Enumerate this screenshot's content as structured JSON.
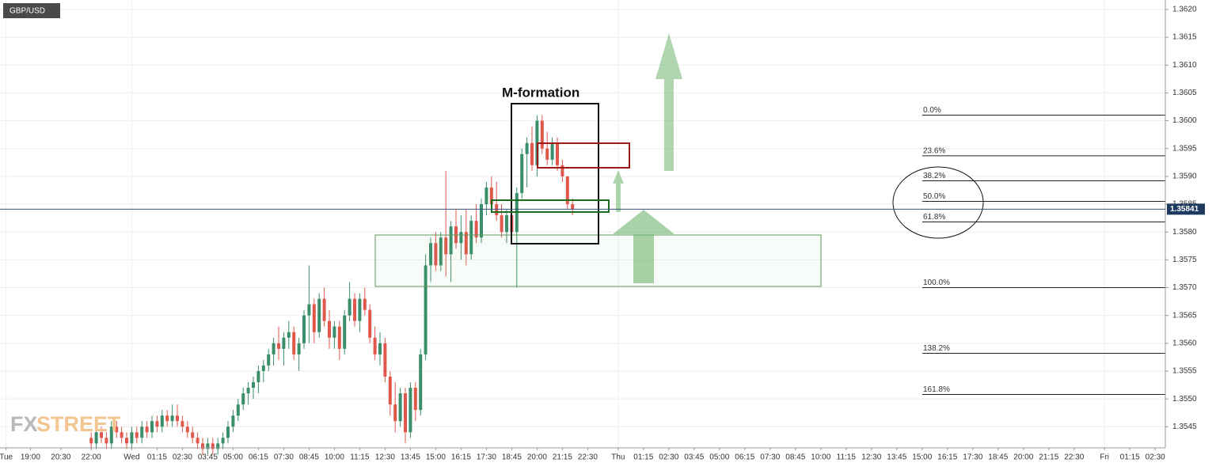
{
  "chart_data": {
    "type": "candlestick",
    "symbol": "GBP/USD",
    "up_color": "#3a8f6a",
    "down_color": "#e0574c",
    "xlim": [
      17.5,
      75
    ],
    "ylim": [
      1.35412,
      1.36217
    ],
    "xticks": [
      {
        "value": 17.8,
        "label": "Tue"
      },
      {
        "value": 19,
        "label": "19:00"
      },
      {
        "value": 20.5,
        "label": "20:30"
      },
      {
        "value": 22,
        "label": "22:00"
      },
      {
        "value": 24,
        "label": "Wed"
      },
      {
        "value": 25.25,
        "label": "01:15"
      },
      {
        "value": 26.5,
        "label": "02:30"
      },
      {
        "value": 27.75,
        "label": "03:45"
      },
      {
        "value": 29,
        "label": "05:00"
      },
      {
        "value": 30.25,
        "label": "06:15"
      },
      {
        "value": 31.5,
        "label": "07:30"
      },
      {
        "value": 32.75,
        "label": "08:45"
      },
      {
        "value": 34,
        "label": "10:00"
      },
      {
        "value": 35.25,
        "label": "11:15"
      },
      {
        "value": 36.5,
        "label": "12:30"
      },
      {
        "value": 37.75,
        "label": "13:45"
      },
      {
        "value": 39,
        "label": "15:00"
      },
      {
        "value": 40.25,
        "label": "16:15"
      },
      {
        "value": 41.5,
        "label": "17:30"
      },
      {
        "value": 42.75,
        "label": "18:45"
      },
      {
        "value": 44,
        "label": "20:00"
      },
      {
        "value": 45.25,
        "label": "21:15"
      },
      {
        "value": 46.5,
        "label": "22:30"
      },
      {
        "value": 48,
        "label": "Thu"
      },
      {
        "value": 49.25,
        "label": "01:15"
      },
      {
        "value": 50.5,
        "label": "02:30"
      },
      {
        "value": 51.75,
        "label": "03:45"
      },
      {
        "value": 53,
        "label": "05:00"
      },
      {
        "value": 54.25,
        "label": "06:15"
      },
      {
        "value": 55.5,
        "label": "07:30"
      },
      {
        "value": 56.75,
        "label": "08:45"
      },
      {
        "value": 58,
        "label": "10:00"
      },
      {
        "value": 59.25,
        "label": "11:15"
      },
      {
        "value": 60.5,
        "label": "12:30"
      },
      {
        "value": 61.75,
        "label": "13:45"
      },
      {
        "value": 63,
        "label": "15:00"
      },
      {
        "value": 64.25,
        "label": "16:15"
      },
      {
        "value": 65.5,
        "label": "17:30"
      },
      {
        "value": 66.75,
        "label": "18:45"
      },
      {
        "value": 68,
        "label": "20:00"
      },
      {
        "value": 69.25,
        "label": "21:15"
      },
      {
        "value": 70.5,
        "label": "22:30"
      },
      {
        "value": 72,
        "label": "Fri"
      },
      {
        "value": 73.25,
        "label": "01:15"
      },
      {
        "value": 74.5,
        "label": "02:30"
      }
    ],
    "yticks": [
      1.3545,
      {
        "value": 1.355,
        "label": "1.3550"
      },
      1.3555,
      {
        "value": 1.356,
        "label": "1.3560"
      },
      1.3565,
      {
        "value": 1.357,
        "label": "1.3570"
      },
      1.3575,
      {
        "value": 1.358,
        "label": "1.3580"
      },
      1.3585,
      {
        "value": 1.359,
        "label": "1.3590"
      },
      1.3595,
      {
        "value": 1.36,
        "label": "1.3600"
      },
      1.3605,
      {
        "value": 1.361,
        "label": "1.3610"
      },
      1.3615,
      {
        "value": 1.362,
        "label": "1.3620"
      }
    ],
    "grid": true,
    "current_price": 1.35841,
    "annotation": "M-formation",
    "watermark": {
      "prefix": "FX",
      "suffix": "STREET"
    },
    "fibonacci": [
      {
        "label": "0.0%",
        "price": 1.3601
      },
      {
        "label": "23.6%",
        "price": 1.35937
      },
      {
        "label": "38.2%",
        "price": 1.35892
      },
      {
        "label": "50.0%",
        "price": 1.35855
      },
      {
        "label": "61.8%",
        "price": 1.35818
      },
      {
        "label": "100.0%",
        "price": 1.357
      },
      {
        "label": "138.2%",
        "price": 1.35582
      },
      {
        "label": "161.8%",
        "price": 1.35508
      }
    ],
    "x": [
      22,
      22.25,
      22.5,
      22.75,
      23,
      23.25,
      23.5,
      23.75,
      24,
      24.25,
      24.5,
      24.75,
      25,
      25.25,
      25.5,
      25.75,
      26,
      26.25,
      26.5,
      26.75,
      27,
      27.25,
      27.5,
      27.75,
      28,
      28.25,
      28.5,
      28.75,
      29,
      29.25,
      29.5,
      29.75,
      30,
      30.25,
      30.5,
      30.75,
      31,
      31.25,
      31.5,
      31.75,
      32,
      32.25,
      32.5,
      32.75,
      33,
      33.25,
      33.5,
      33.75,
      34,
      34.25,
      34.5,
      34.75,
      35,
      35.25,
      35.5,
      35.75,
      36,
      36.25,
      36.5,
      36.75,
      37,
      37.25,
      37.5,
      37.75,
      38,
      38.25,
      38.5,
      38.75,
      39,
      39.25,
      39.5,
      39.75,
      40,
      40.25,
      40.5,
      40.75,
      41,
      41.25,
      41.5,
      41.75,
      42,
      42.25,
      42.5,
      42.75,
      43,
      43.25,
      43.5,
      43.75,
      44,
      44.25,
      44.5,
      44.75,
      45,
      45.25,
      45.5,
      45.75
    ],
    "open": [
      1.3543,
      1.3542,
      1.3544,
      1.3543,
      1.3542,
      1.3545,
      1.3544,
      1.3543,
      1.3542,
      1.3544,
      1.3543,
      1.3545,
      1.3544,
      1.3546,
      1.3545,
      1.3547,
      1.3546,
      1.3547,
      1.3546,
      1.3545,
      1.3544,
      1.3543,
      1.3542,
      1.3541,
      1.3542,
      1.3541,
      1.3542,
      1.3543,
      1.3545,
      1.3547,
      1.3549,
      1.3551,
      1.3552,
      1.3553,
      1.3555,
      1.3556,
      1.3558,
      1.356,
      1.3559,
      1.3561,
      1.3562,
      1.3558,
      1.356,
      1.3565,
      1.3567,
      1.3562,
      1.3568,
      1.3564,
      1.3561,
      1.3563,
      1.3559,
      1.3565,
      1.3568,
      1.3564,
      1.3568,
      1.3566,
      1.3561,
      1.3558,
      1.356,
      1.3554,
      1.3549,
      1.3546,
      1.3551,
      1.3544,
      1.3552,
      1.3548,
      1.3558,
      1.3574,
      1.3578,
      1.3574,
      1.3579,
      1.3576,
      1.3581,
      1.3578,
      1.358,
      1.3576,
      1.3582,
      1.3579,
      1.3585,
      1.3588,
      1.3585,
      1.3583,
      1.358,
      1.3583,
      1.358,
      1.3587,
      1.3594,
      1.3596,
      1.3592,
      1.36,
      1.3595,
      1.3593,
      1.3596,
      1.3592,
      1.359,
      1.3585
    ],
    "high": [
      1.3544,
      1.3545,
      1.3545,
      1.3544,
      1.3546,
      1.3546,
      1.3545,
      1.3544,
      1.3545,
      1.3545,
      1.3546,
      1.3546,
      1.3547,
      1.3547,
      1.3548,
      1.3548,
      1.3549,
      1.3549,
      1.3547,
      1.3546,
      1.3545,
      1.3544,
      1.3543,
      1.3543,
      1.3543,
      1.3543,
      1.3544,
      1.3546,
      1.3548,
      1.355,
      1.3552,
      1.3553,
      1.3554,
      1.3556,
      1.3557,
      1.3559,
      1.3561,
      1.3563,
      1.3562,
      1.3564,
      1.3563,
      1.3561,
      1.3566,
      1.3574,
      1.3568,
      1.3569,
      1.357,
      1.3566,
      1.3564,
      1.3564,
      1.3566,
      1.3571,
      1.3569,
      1.3569,
      1.357,
      1.3567,
      1.3563,
      1.3562,
      1.3561,
      1.3555,
      1.3553,
      1.3552,
      1.3552,
      1.3553,
      1.3553,
      1.3559,
      1.3576,
      1.3579,
      1.358,
      1.358,
      1.3591,
      1.3582,
      1.3584,
      1.3583,
      1.3584,
      1.3583,
      1.3585,
      1.3586,
      1.3589,
      1.359,
      1.3589,
      1.3585,
      1.3584,
      1.3584,
      1.3588,
      1.3595,
      1.3597,
      1.3599,
      1.3601,
      1.3601,
      1.3598,
      1.3597,
      1.3597,
      1.3593,
      1.359,
      1.3586
    ],
    "low": [
      1.3541,
      1.3541,
      1.3542,
      1.3541,
      1.3541,
      1.3543,
      1.3542,
      1.3541,
      1.3541,
      1.3542,
      1.3542,
      1.3543,
      1.3543,
      1.3544,
      1.3544,
      1.3545,
      1.3545,
      1.3545,
      1.3544,
      1.3543,
      1.3542,
      1.3541,
      1.354,
      1.354,
      1.354,
      1.354,
      1.3541,
      1.3542,
      1.3544,
      1.3546,
      1.3548,
      1.3549,
      1.355,
      1.3551,
      1.3553,
      1.3555,
      1.3556,
      1.3557,
      1.3556,
      1.3559,
      1.3557,
      1.3555,
      1.3559,
      1.356,
      1.356,
      1.3561,
      1.3563,
      1.3559,
      1.3559,
      1.3557,
      1.3558,
      1.3564,
      1.3563,
      1.3562,
      1.3565,
      1.356,
      1.3557,
      1.3556,
      1.3553,
      1.3547,
      1.3544,
      1.3545,
      1.3542,
      1.3543,
      1.3546,
      1.3547,
      1.3557,
      1.3571,
      1.3573,
      1.3573,
      1.3572,
      1.3571,
      1.3577,
      1.3575,
      1.3574,
      1.3575,
      1.3578,
      1.3578,
      1.3583,
      1.3584,
      1.3582,
      1.3579,
      1.3578,
      1.3578,
      1.357,
      1.3586,
      1.3588,
      1.3591,
      1.359,
      1.3594,
      1.3592,
      1.3592,
      1.3591,
      1.3589,
      1.3584,
      1.3583
    ],
    "close": [
      1.3542,
      1.3544,
      1.3543,
      1.3542,
      1.3545,
      1.3544,
      1.3543,
      1.3542,
      1.3544,
      1.3543,
      1.3545,
      1.3544,
      1.3546,
      1.3545,
      1.3547,
      1.3546,
      1.3547,
      1.3546,
      1.3545,
      1.3544,
      1.3543,
      1.3542,
      1.3541,
      1.3542,
      1.3541,
      1.3542,
      1.3543,
      1.3545,
      1.3547,
      1.3549,
      1.3551,
      1.3552,
      1.3553,
      1.3555,
      1.3556,
      1.3558,
      1.356,
      1.3559,
      1.3561,
      1.3562,
      1.3558,
      1.356,
      1.3565,
      1.3567,
      1.3562,
      1.3568,
      1.3564,
      1.3561,
      1.3563,
      1.3559,
      1.3565,
      1.3568,
      1.3564,
      1.3568,
      1.3566,
      1.3561,
      1.3558,
      1.356,
      1.3554,
      1.3549,
      1.3546,
      1.3551,
      1.3544,
      1.3552,
      1.3548,
      1.3558,
      1.3574,
      1.3578,
      1.3574,
      1.3579,
      1.3576,
      1.3581,
      1.3578,
      1.358,
      1.3576,
      1.3582,
      1.3579,
      1.3585,
      1.3588,
      1.3585,
      1.3583,
      1.358,
      1.3583,
      1.358,
      1.3587,
      1.3594,
      1.3596,
      1.3592,
      1.36,
      1.3595,
      1.3593,
      1.3596,
      1.3592,
      1.359,
      1.3585,
      1.35841
    ]
  }
}
